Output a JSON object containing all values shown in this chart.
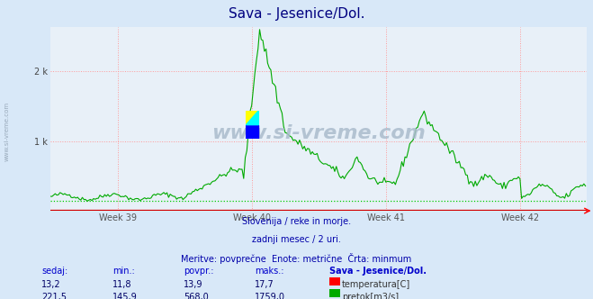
{
  "title": "Sava - Jesenice/Dol.",
  "title_color": "#000080",
  "bg_color": "#d8e8f8",
  "plot_bg_color": "#e8f0f8",
  "xlim": [
    0,
    336
  ],
  "ylim": [
    0,
    2640
  ],
  "xtick_positions": [
    42,
    126,
    210,
    294
  ],
  "xtick_labels": [
    "Week 39",
    "Week 40",
    "Week 41",
    "Week 42"
  ],
  "flow_color": "#00aa00",
  "temp_color": "#cc0000",
  "min_line_color": "#00cc00",
  "min_flow": 145.9,
  "subtitle1": "Slovenija / reke in morje.",
  "subtitle2": "zadnji mesec / 2 uri.",
  "subtitle3": "Meritve: povprečne  Enote: metrične  Črta: minmum",
  "subtitle_color": "#0000aa",
  "table_header_color": "#0000cc",
  "table_value_color": "#000066",
  "legend_title": "Sava - Jesenice/Dol.",
  "sedaj_label": "sedaj:",
  "min_label": "min.:",
  "povpr_label": "povpr.:",
  "maks_label": "maks.:",
  "temp_sedaj": "13,2",
  "temp_min": "11,8",
  "temp_povpr": "13,9",
  "temp_maks": "17,7",
  "flow_sedaj": "221,5",
  "flow_min": "145,9",
  "flow_povpr": "568,0",
  "flow_maks": "1759,0",
  "temp_label": "temperatura[C]",
  "flow_label": "pretok[m3/s]",
  "watermark_text": "www.si-vreme.com",
  "watermark_color": "#aabbcc",
  "left_label": "www.si-vreme.com"
}
